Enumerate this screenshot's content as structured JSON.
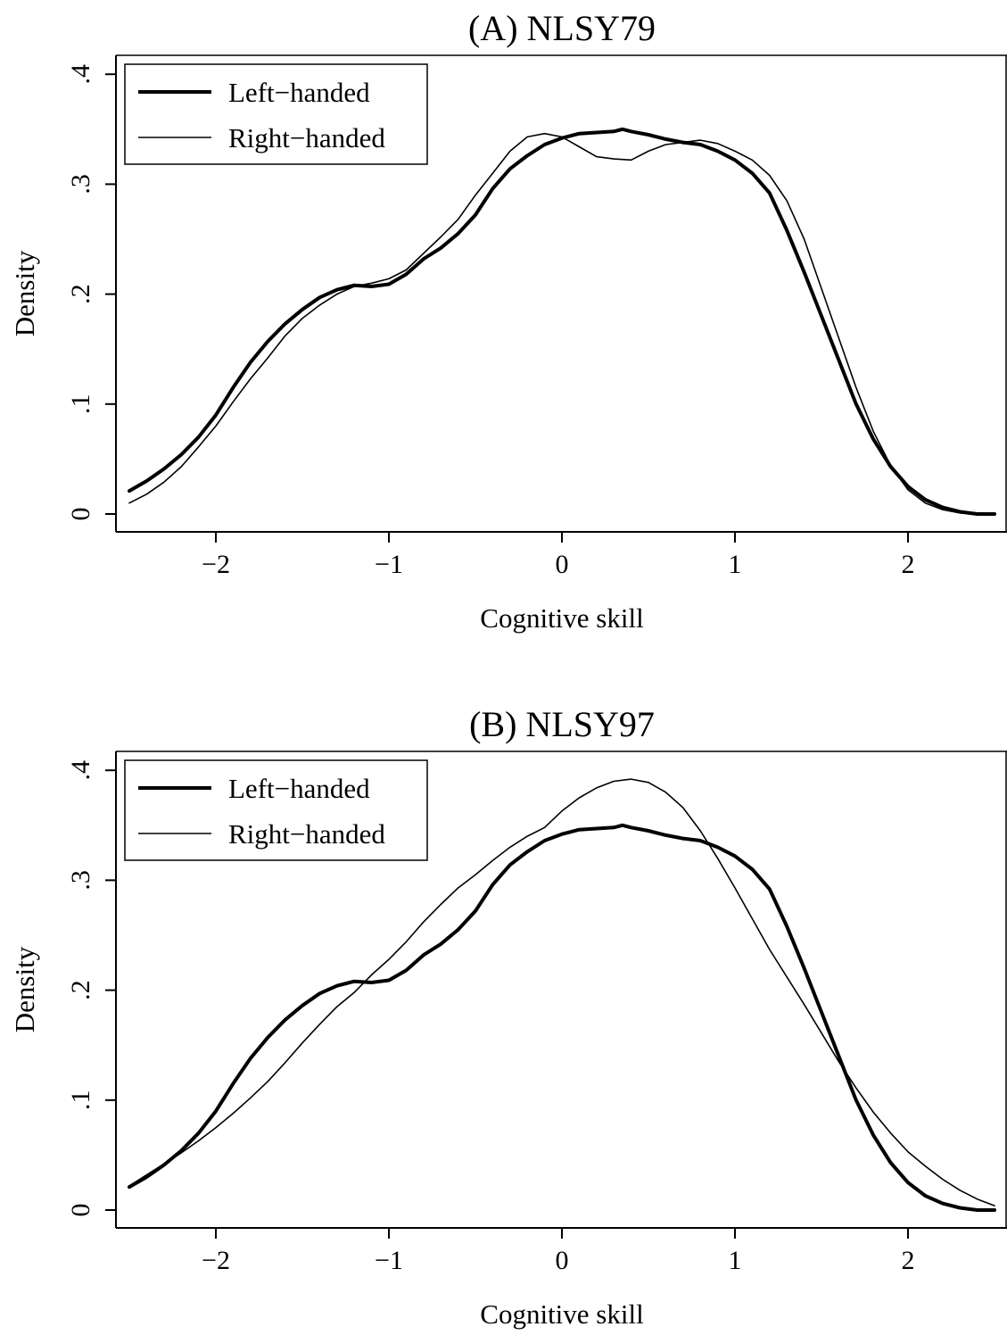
{
  "chart_data": [
    {
      "type": "line",
      "title": "(A) NLSY79",
      "xlabel": "Cognitive skill",
      "ylabel": "Density",
      "xlim": [
        -2.5,
        2.5
      ],
      "ylim": [
        0,
        0.4
      ],
      "x_ticks": [
        -2,
        -1,
        0,
        1,
        2
      ],
      "x_tick_labels": [
        "−2",
        "−1",
        "0",
        "1",
        "2"
      ],
      "y_ticks": [
        0,
        0.1,
        0.2,
        0.3,
        0.4
      ],
      "y_tick_labels": [
        "0",
        ".1",
        ".2",
        ".3",
        ".4"
      ],
      "legend_position": "top-left",
      "grid": false,
      "series": [
        {
          "name": "Left−handed",
          "style": "thick",
          "x": [
            -2.5,
            -2.4,
            -2.3,
            -2.2,
            -2.1,
            -2.0,
            -1.9,
            -1.8,
            -1.7,
            -1.6,
            -1.5,
            -1.4,
            -1.3,
            -1.2,
            -1.1,
            -1.0,
            -0.9,
            -0.8,
            -0.7,
            -0.6,
            -0.5,
            -0.4,
            -0.3,
            -0.2,
            -0.1,
            0.0,
            0.1,
            0.2,
            0.3,
            0.35,
            0.4,
            0.5,
            0.6,
            0.7,
            0.8,
            0.9,
            1.0,
            1.1,
            1.2,
            1.3,
            1.4,
            1.5,
            1.6,
            1.7,
            1.8,
            1.9,
            2.0,
            2.1,
            2.2,
            2.3,
            2.4,
            2.5
          ],
          "y": [
            0.021,
            0.03,
            0.041,
            0.054,
            0.07,
            0.09,
            0.115,
            0.138,
            0.157,
            0.173,
            0.186,
            0.197,
            0.204,
            0.208,
            0.207,
            0.209,
            0.218,
            0.232,
            0.242,
            0.255,
            0.272,
            0.296,
            0.314,
            0.326,
            0.336,
            0.342,
            0.346,
            0.347,
            0.348,
            0.35,
            0.348,
            0.345,
            0.341,
            0.338,
            0.336,
            0.33,
            0.322,
            0.31,
            0.292,
            0.258,
            0.22,
            0.18,
            0.14,
            0.1,
            0.068,
            0.043,
            0.025,
            0.013,
            0.006,
            0.002,
            0.0,
            0.0
          ]
        },
        {
          "name": "Right−handed",
          "style": "thin",
          "x": [
            -2.5,
            -2.4,
            -2.3,
            -2.2,
            -2.1,
            -2.0,
            -1.9,
            -1.8,
            -1.7,
            -1.6,
            -1.5,
            -1.4,
            -1.3,
            -1.2,
            -1.1,
            -1.0,
            -0.9,
            -0.8,
            -0.7,
            -0.6,
            -0.5,
            -0.4,
            -0.3,
            -0.2,
            -0.1,
            0.0,
            0.1,
            0.2,
            0.3,
            0.4,
            0.5,
            0.6,
            0.7,
            0.8,
            0.9,
            1.0,
            1.1,
            1.2,
            1.3,
            1.4,
            1.5,
            1.6,
            1.7,
            1.8,
            1.9,
            2.0,
            2.1,
            2.2,
            2.3,
            2.4,
            2.5
          ],
          "y": [
            0.01,
            0.018,
            0.029,
            0.043,
            0.061,
            0.08,
            0.102,
            0.123,
            0.142,
            0.162,
            0.178,
            0.19,
            0.2,
            0.207,
            0.21,
            0.214,
            0.222,
            0.237,
            0.252,
            0.268,
            0.29,
            0.31,
            0.33,
            0.343,
            0.346,
            0.343,
            0.334,
            0.325,
            0.323,
            0.322,
            0.33,
            0.336,
            0.338,
            0.34,
            0.337,
            0.33,
            0.322,
            0.308,
            0.285,
            0.25,
            0.205,
            0.16,
            0.115,
            0.075,
            0.044,
            0.022,
            0.01,
            0.004,
            0.001,
            0.0,
            0.0
          ]
        }
      ]
    },
    {
      "type": "line",
      "title": "(B) NLSY97",
      "xlabel": "Cognitive skill",
      "ylabel": "Density",
      "xlim": [
        -2.5,
        2.5
      ],
      "ylim": [
        0,
        0.4
      ],
      "x_ticks": [
        -2,
        -1,
        0,
        1,
        2
      ],
      "x_tick_labels": [
        "−2",
        "−1",
        "0",
        "1",
        "2"
      ],
      "y_ticks": [
        0,
        0.1,
        0.2,
        0.3,
        0.4
      ],
      "y_tick_labels": [
        "0",
        ".1",
        ".2",
        ".3",
        ".4"
      ],
      "legend_position": "top-left",
      "grid": false,
      "series": [
        {
          "name": "Left−handed",
          "style": "thick",
          "x": [
            -2.5,
            -2.4,
            -2.3,
            -2.2,
            -2.1,
            -2.0,
            -1.9,
            -1.8,
            -1.7,
            -1.6,
            -1.5,
            -1.4,
            -1.3,
            -1.2,
            -1.1,
            -1.0,
            -0.9,
            -0.8,
            -0.7,
            -0.6,
            -0.5,
            -0.4,
            -0.3,
            -0.2,
            -0.1,
            0.0,
            0.1,
            0.2,
            0.3,
            0.35,
            0.4,
            0.5,
            0.6,
            0.7,
            0.8,
            0.9,
            1.0,
            1.1,
            1.2,
            1.3,
            1.4,
            1.5,
            1.6,
            1.7,
            1.8,
            1.9,
            2.0,
            2.1,
            2.2,
            2.3,
            2.4,
            2.5
          ],
          "y": [
            0.021,
            0.03,
            0.041,
            0.054,
            0.07,
            0.09,
            0.115,
            0.138,
            0.157,
            0.173,
            0.186,
            0.197,
            0.204,
            0.208,
            0.207,
            0.209,
            0.218,
            0.232,
            0.242,
            0.255,
            0.272,
            0.296,
            0.314,
            0.326,
            0.336,
            0.342,
            0.346,
            0.347,
            0.348,
            0.35,
            0.348,
            0.345,
            0.341,
            0.338,
            0.336,
            0.33,
            0.322,
            0.31,
            0.292,
            0.258,
            0.22,
            0.18,
            0.14,
            0.1,
            0.068,
            0.043,
            0.025,
            0.013,
            0.006,
            0.002,
            0.0,
            0.0
          ]
        },
        {
          "name": "Right−handed",
          "style": "thin",
          "x": [
            -2.5,
            -2.4,
            -2.3,
            -2.2,
            -2.1,
            -2.0,
            -1.9,
            -1.8,
            -1.7,
            -1.6,
            -1.5,
            -1.4,
            -1.3,
            -1.2,
            -1.1,
            -1.0,
            -0.9,
            -0.8,
            -0.7,
            -0.6,
            -0.5,
            -0.4,
            -0.3,
            -0.2,
            -0.1,
            0.0,
            0.1,
            0.2,
            0.3,
            0.4,
            0.5,
            0.6,
            0.7,
            0.8,
            0.9,
            1.0,
            1.1,
            1.2,
            1.3,
            1.4,
            1.5,
            1.6,
            1.7,
            1.8,
            1.9,
            2.0,
            2.1,
            2.2,
            2.3,
            2.4,
            2.5
          ],
          "y": [
            0.022,
            0.032,
            0.042,
            0.052,
            0.063,
            0.075,
            0.088,
            0.102,
            0.117,
            0.134,
            0.152,
            0.169,
            0.185,
            0.198,
            0.214,
            0.228,
            0.244,
            0.262,
            0.278,
            0.293,
            0.305,
            0.318,
            0.33,
            0.34,
            0.348,
            0.363,
            0.375,
            0.384,
            0.39,
            0.392,
            0.389,
            0.38,
            0.366,
            0.345,
            0.32,
            0.293,
            0.265,
            0.237,
            0.212,
            0.187,
            0.161,
            0.135,
            0.111,
            0.089,
            0.07,
            0.053,
            0.04,
            0.028,
            0.018,
            0.01,
            0.004
          ]
        }
      ]
    }
  ]
}
